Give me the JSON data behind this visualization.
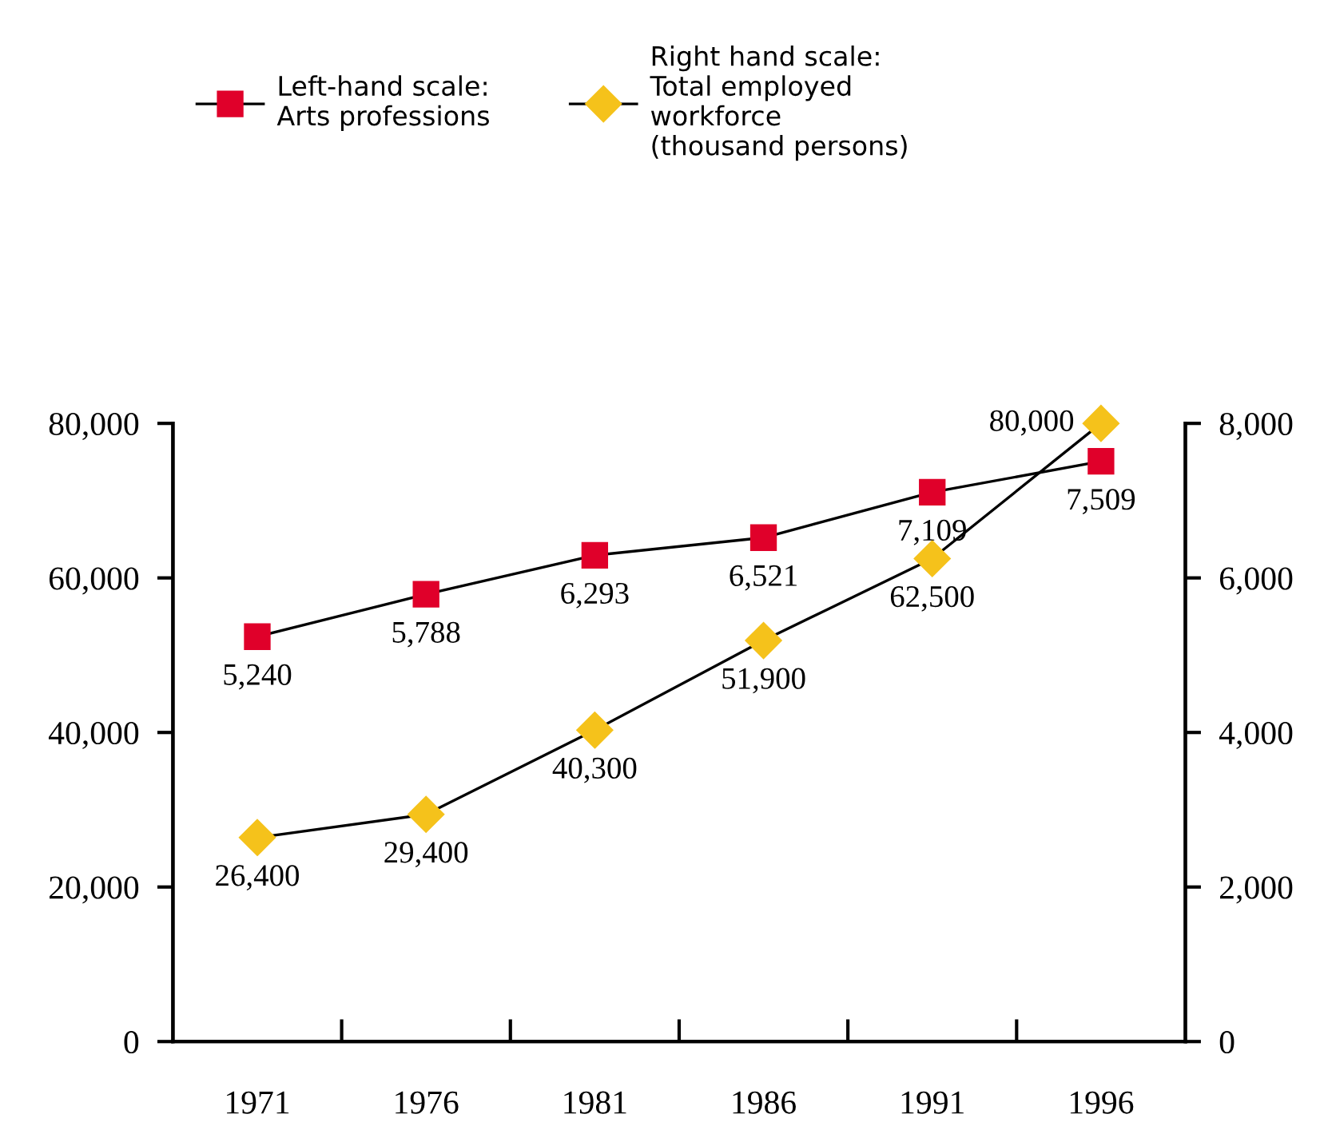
{
  "chart_data": {
    "type": "line",
    "categories": [
      "1971",
      "1976",
      "1981",
      "1986",
      "1991",
      "1996"
    ],
    "series": [
      {
        "name": "Left-hand scale:\nArts professions",
        "color": "#e0002a",
        "marker": "square",
        "axis": "y2",
        "values": [
          5240,
          5788,
          6293,
          6521,
          7109,
          7509
        ],
        "value_labels": [
          "5,240",
          "5,788",
          "6,293",
          "6,521",
          "7,109",
          "7,509"
        ]
      },
      {
        "name": "Right hand scale:\nTotal employed\nworkforce\n(thousand persons)",
        "color": "#f5c21b",
        "marker": "diamond",
        "values": [
          26400,
          29400,
          40300,
          51900,
          62500,
          80000
        ],
        "value_labels": [
          "26,400",
          "29,400",
          "40,300",
          "51,900",
          "62,500",
          "80,000"
        ]
      }
    ],
    "ylim": [
      0,
      80000
    ],
    "yticks": [
      0,
      {
        "value": 20000,
        "label": "20,000"
      },
      {
        "value": 40000,
        "label": "40,000"
      },
      {
        "value": 60000,
        "label": "60,000"
      },
      {
        "value": 80000,
        "label": "80,000"
      }
    ],
    "y2lim": [
      0,
      8000
    ],
    "y2ticks": [
      0,
      {
        "value": 2000,
        "label": "2,000"
      },
      {
        "value": 4000,
        "label": "4,000"
      },
      {
        "value": 6000,
        "label": "6,000"
      },
      {
        "value": 8000,
        "label": "8,000"
      }
    ],
    "legend": "top left",
    "grid": false
  }
}
